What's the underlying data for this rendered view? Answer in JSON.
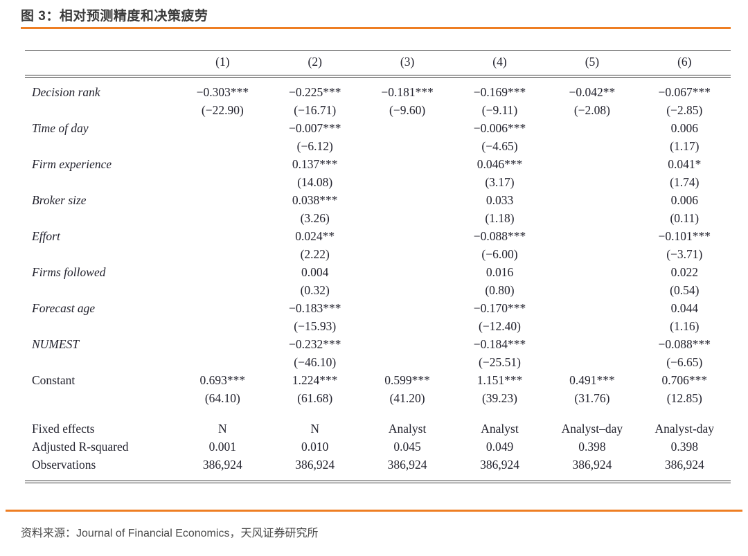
{
  "page": {
    "title": "图 3：相对预测精度和决策疲劳",
    "source_line": "资料来源：Journal of Financial Economics，天风证券研究所"
  },
  "colors": {
    "accent_orange": "#EE7E23",
    "table_text": "#23232E",
    "title_gray": "#3B3B3B",
    "source_gray": "#4A4A4A"
  },
  "table": {
    "columns": [
      "(1)",
      "(2)",
      "(3)",
      "(4)",
      "(5)",
      "(6)"
    ],
    "coef_rows": [
      {
        "label": "Decision rank",
        "italic": true,
        "coefs": [
          "−0.303***",
          "−0.225***",
          "−0.181***",
          "−0.169***",
          "−0.042**",
          "−0.067***"
        ],
        "tstats": [
          "(−22.90)",
          "(−16.71)",
          "(−9.60)",
          "(−9.11)",
          "(−2.08)",
          "(−2.85)"
        ]
      },
      {
        "label": "Time of day",
        "italic": true,
        "coefs": [
          "",
          "−0.007***",
          "",
          "−0.006***",
          "",
          "0.006"
        ],
        "tstats": [
          "",
          "(−6.12)",
          "",
          "(−4.65)",
          "",
          "(1.17)"
        ]
      },
      {
        "label": "Firm experience",
        "italic": true,
        "coefs": [
          "",
          "0.137***",
          "",
          "0.046***",
          "",
          "0.041*"
        ],
        "tstats": [
          "",
          "(14.08)",
          "",
          "(3.17)",
          "",
          "(1.74)"
        ]
      },
      {
        "label": "Broker size",
        "italic": true,
        "coefs": [
          "",
          "0.038***",
          "",
          "0.033",
          "",
          "0.006"
        ],
        "tstats": [
          "",
          "(3.26)",
          "",
          "(1.18)",
          "",
          "(0.11)"
        ]
      },
      {
        "label": "Effort",
        "italic": true,
        "coefs": [
          "",
          "0.024**",
          "",
          "−0.088***",
          "",
          "−0.101***"
        ],
        "tstats": [
          "",
          "(2.22)",
          "",
          "(−6.00)",
          "",
          "(−3.71)"
        ]
      },
      {
        "label": "Firms followed",
        "italic": true,
        "coefs": [
          "",
          "0.004",
          "",
          "0.016",
          "",
          "0.022"
        ],
        "tstats": [
          "",
          "(0.32)",
          "",
          "(0.80)",
          "",
          "(0.54)"
        ]
      },
      {
        "label": "Forecast age",
        "italic": true,
        "coefs": [
          "",
          "−0.183***",
          "",
          "−0.170***",
          "",
          "0.044"
        ],
        "tstats": [
          "",
          "(−15.93)",
          "",
          "(−12.40)",
          "",
          "(1.16)"
        ]
      },
      {
        "label": "NUMEST",
        "italic": true,
        "coefs": [
          "",
          "−0.232***",
          "",
          "−0.184***",
          "",
          "−0.088***"
        ],
        "tstats": [
          "",
          "(−46.10)",
          "",
          "(−25.51)",
          "",
          "(−6.65)"
        ]
      },
      {
        "label": "Constant",
        "italic": false,
        "coefs": [
          "0.693***",
          "1.224***",
          "0.599***",
          "1.151***",
          "0.491***",
          "0.706***"
        ],
        "tstats": [
          "(64.10)",
          "(61.68)",
          "(41.20)",
          "(39.23)",
          "(31.76)",
          "(12.85)"
        ]
      }
    ],
    "summary_rows": [
      {
        "label": "Fixed effects",
        "values": [
          "N",
          "N",
          "Analyst",
          "Analyst",
          "Analyst–day",
          "Analyst-day"
        ]
      },
      {
        "label": "Adjusted R-squared",
        "values": [
          "0.001",
          "0.010",
          "0.045",
          "0.049",
          "0.398",
          "0.398"
        ]
      },
      {
        "label": "Observations",
        "values": [
          "386,924",
          "386,924",
          "386,924",
          "386,924",
          "386,924",
          "386,924"
        ]
      }
    ]
  }
}
